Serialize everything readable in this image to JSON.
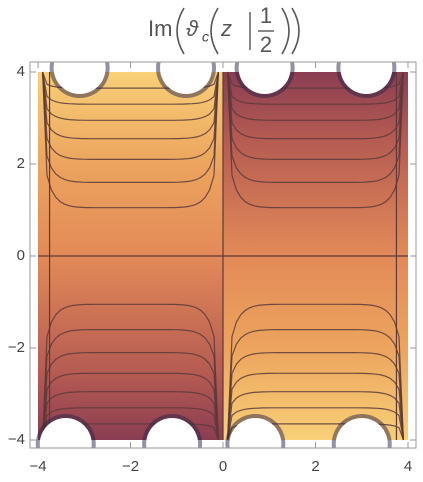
{
  "chart_data": {
    "type": "contour",
    "title": {
      "prefix": "Im",
      "func": "ϑ",
      "subscript": "c",
      "arg": "z",
      "numerator": "1",
      "denominator": "2"
    },
    "xlim": [
      -4,
      4
    ],
    "ylim": [
      -4,
      4
    ],
    "xticks": [
      {
        "value": -4,
        "label": "−4"
      },
      {
        "value": -2,
        "label": "−2"
      },
      0,
      2,
      4
    ],
    "yticks": [
      {
        "value": -4,
        "label": "−4"
      },
      {
        "value": -2,
        "label": "−2"
      },
      0,
      2,
      4
    ]
  }
}
